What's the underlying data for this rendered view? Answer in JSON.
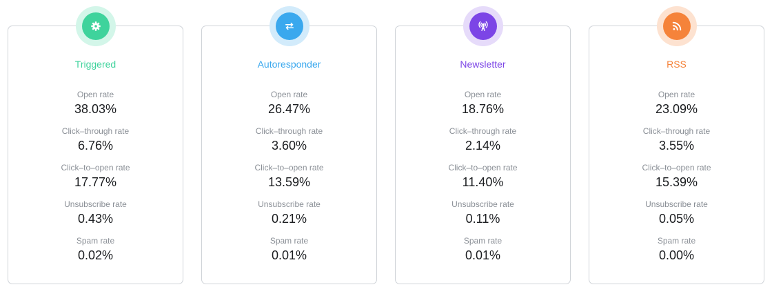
{
  "cards": [
    {
      "title": "Triggered",
      "icon": "gear-icon",
      "accent": "#3fd39c",
      "halo": "#d3f6e9",
      "metrics": [
        {
          "label": "Open rate",
          "value": "38.03%"
        },
        {
          "label": "Click–through rate",
          "value": "6.76%"
        },
        {
          "label": "Click–to–open rate",
          "value": "17.77%"
        },
        {
          "label": "Unsubscribe rate",
          "value": "0.43%"
        },
        {
          "label": "Spam rate",
          "value": "0.02%"
        }
      ]
    },
    {
      "title": "Autoresponder",
      "icon": "swap-arrows-icon",
      "accent": "#3aa8ee",
      "halo": "#d2ebfb",
      "metrics": [
        {
          "label": "Open rate",
          "value": "26.47%"
        },
        {
          "label": "Click–through rate",
          "value": "3.60%"
        },
        {
          "label": "Click–to–open rate",
          "value": "13.59%"
        },
        {
          "label": "Unsubscribe rate",
          "value": "0.21%"
        },
        {
          "label": "Spam rate",
          "value": "0.01%"
        }
      ]
    },
    {
      "title": "Newsletter",
      "icon": "broadcast-tower-icon",
      "accent": "#7c45e6",
      "halo": "#e6dbfa",
      "metrics": [
        {
          "label": "Open rate",
          "value": "18.76%"
        },
        {
          "label": "Click–through rate",
          "value": "2.14%"
        },
        {
          "label": "Click–to–open rate",
          "value": "11.40%"
        },
        {
          "label": "Unsubscribe rate",
          "value": "0.11%"
        },
        {
          "label": "Spam rate",
          "value": "0.01%"
        }
      ]
    },
    {
      "title": "RSS",
      "icon": "rss-feed-icon",
      "accent": "#f5833a",
      "halo": "#fde2d0",
      "metrics": [
        {
          "label": "Open rate",
          "value": "23.09%"
        },
        {
          "label": "Click–through rate",
          "value": "3.55%"
        },
        {
          "label": "Click–to–open rate",
          "value": "15.39%"
        },
        {
          "label": "Unsubscribe rate",
          "value": "0.05%"
        },
        {
          "label": "Spam rate",
          "value": "0.00%"
        }
      ]
    }
  ]
}
